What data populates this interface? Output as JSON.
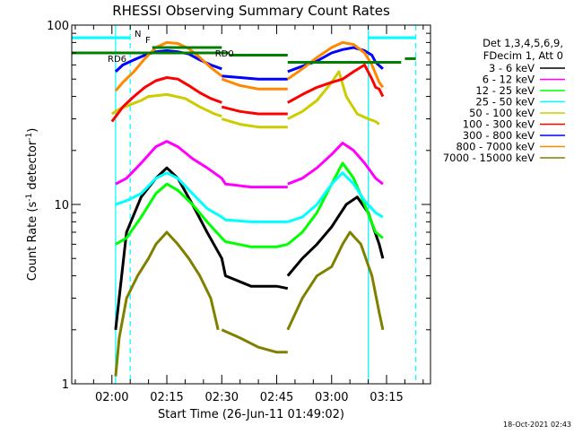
{
  "chart_data": {
    "type": "line",
    "title": "RHESSI Observing Summary Count Rates",
    "xlabel": "Start Time (26-Jun-11 01:49:02)",
    "ylabel_main": "Count Rate (s",
    "ylabel_sup": "-1",
    "ylabel_tail": " detector",
    "ylabel_end": ")",
    "yscale": "log",
    "ylim": [
      1,
      100
    ],
    "xlim": [
      "01:49:02",
      "03:27:00"
    ],
    "y_ticks": [
      "1",
      "10",
      "100"
    ],
    "x_ticks": [
      "02:00",
      "02:15",
      "02:30",
      "02:45",
      "03:00",
      "03:15"
    ],
    "legend_header": [
      "Det 1,3,4,5,6,9,",
      "FDecim 1, Att 0"
    ],
    "legend_placement": "right",
    "series": [
      {
        "name": "3 - 6 keV",
        "color": "#000000",
        "segments": [
          [
            [
              "02:01",
              2
            ],
            [
              "02:04",
              7
            ],
            [
              "02:08",
              11
            ],
            [
              "02:12",
              14
            ],
            [
              "02:15",
              16
            ],
            [
              "02:18",
              14
            ],
            [
              "02:22",
              10
            ],
            [
              "02:26",
              7
            ],
            [
              "02:30",
              5
            ],
            [
              "02:31",
              4
            ],
            [
              "02:38",
              3.5
            ],
            [
              "02:45",
              3.5
            ],
            [
              "02:48",
              3.4
            ]
          ],
          [
            [
              "02:48",
              4
            ],
            [
              "02:52",
              5
            ],
            [
              "02:56",
              6
            ],
            [
              "03:00",
              7.5
            ],
            [
              "03:04",
              10
            ],
            [
              "03:07",
              11
            ],
            [
              "03:10",
              9
            ],
            [
              "03:13",
              6
            ],
            [
              "03:14",
              5
            ]
          ]
        ]
      },
      {
        "name": "6 - 12 keV",
        "color": "#ff00ff",
        "segments": [
          [
            [
              "02:01",
              13
            ],
            [
              "02:04",
              14
            ],
            [
              "02:08",
              17
            ],
            [
              "02:12",
              21
            ],
            [
              "02:15",
              22.5
            ],
            [
              "02:18",
              21
            ],
            [
              "02:22",
              18
            ],
            [
              "02:26",
              16
            ],
            [
              "02:30",
              14
            ],
            [
              "02:31",
              13
            ],
            [
              "02:38",
              12.5
            ],
            [
              "02:45",
              12.5
            ],
            [
              "02:48",
              12.5
            ]
          ],
          [
            [
              "02:48",
              13
            ],
            [
              "02:52",
              14
            ],
            [
              "02:56",
              16
            ],
            [
              "03:00",
              19
            ],
            [
              "03:03",
              22
            ],
            [
              "03:06",
              20
            ],
            [
              "03:09",
              17
            ],
            [
              "03:12",
              14
            ],
            [
              "03:14",
              13
            ]
          ]
        ]
      },
      {
        "name": "12 - 25 keV",
        "color": "#00ff00",
        "segments": [
          [
            [
              "02:01",
              6
            ],
            [
              "02:04",
              6.5
            ],
            [
              "02:08",
              8.5
            ],
            [
              "02:12",
              11.5
            ],
            [
              "02:15",
              13
            ],
            [
              "02:18",
              12
            ],
            [
              "02:22",
              10
            ],
            [
              "02:26",
              8
            ],
            [
              "02:30",
              6.5
            ],
            [
              "02:31",
              6.2
            ],
            [
              "02:38",
              5.8
            ],
            [
              "02:45",
              5.8
            ],
            [
              "02:48",
              6
            ]
          ],
          [
            [
              "02:48",
              6
            ],
            [
              "02:52",
              7
            ],
            [
              "02:56",
              9
            ],
            [
              "03:00",
              13
            ],
            [
              "03:03",
              17
            ],
            [
              "03:06",
              14
            ],
            [
              "03:09",
              10
            ],
            [
              "03:12",
              7
            ],
            [
              "03:14",
              6.5
            ]
          ]
        ]
      },
      {
        "name": "25 - 50 keV",
        "color": "#00ffff",
        "segments": [
          [
            [
              "02:01",
              10
            ],
            [
              "02:04",
              10.5
            ],
            [
              "02:08",
              11.5
            ],
            [
              "02:12",
              14
            ],
            [
              "02:15",
              15
            ],
            [
              "02:18",
              14
            ],
            [
              "02:22",
              11.5
            ],
            [
              "02:26",
              9.5
            ],
            [
              "02:30",
              8.5
            ],
            [
              "02:31",
              8.2
            ],
            [
              "02:38",
              8
            ],
            [
              "02:45",
              8
            ],
            [
              "02:48",
              8
            ]
          ],
          [
            [
              "02:48",
              8
            ],
            [
              "02:52",
              8.5
            ],
            [
              "02:56",
              10
            ],
            [
              "03:00",
              13
            ],
            [
              "03:03",
              15
            ],
            [
              "03:06",
              13
            ],
            [
              "03:09",
              10.5
            ],
            [
              "03:12",
              9
            ],
            [
              "03:14",
              8.5
            ]
          ]
        ]
      },
      {
        "name": "50 - 100 keV",
        "color": "#cccc00",
        "segments": [
          [
            [
              "02:00",
              32
            ],
            [
              "02:02",
              34
            ],
            [
              "02:05",
              36
            ],
            [
              "02:08",
              38
            ],
            [
              "02:10",
              40
            ],
            [
              "02:15",
              41
            ],
            [
              "02:20",
              39
            ],
            [
              "02:24",
              35
            ],
            [
              "02:28",
              32
            ],
            [
              "02:30",
              31
            ]
          ],
          [
            [
              "02:30",
              30
            ],
            [
              "02:35",
              28
            ],
            [
              "02:40",
              27
            ],
            [
              "02:45",
              27
            ],
            [
              "02:48",
              27
            ]
          ],
          [
            [
              "02:48",
              30
            ],
            [
              "02:52",
              33
            ],
            [
              "02:56",
              38
            ],
            [
              "03:00",
              48
            ],
            [
              "03:02",
              55
            ],
            [
              "03:04",
              40
            ],
            [
              "03:07",
              32
            ],
            [
              "03:10",
              30
            ],
            [
              "03:12",
              29
            ],
            [
              "03:13",
              28
            ]
          ]
        ]
      },
      {
        "name": "100 - 300 keV",
        "color": "#ff0000",
        "segments": [
          [
            [
              "02:00",
              29
            ],
            [
              "02:03",
              35
            ],
            [
              "02:06",
              40
            ],
            [
              "02:09",
              45
            ],
            [
              "02:12",
              49
            ],
            [
              "02:15",
              51
            ],
            [
              "02:18",
              50
            ],
            [
              "02:21",
              46
            ],
            [
              "02:24",
              42
            ],
            [
              "02:27",
              39
            ],
            [
              "02:30",
              37
            ]
          ],
          [
            [
              "02:30",
              35
            ],
            [
              "02:35",
              33
            ],
            [
              "02:40",
              32
            ],
            [
              "02:45",
              32
            ],
            [
              "02:48",
              32
            ]
          ],
          [
            [
              "02:48",
              37
            ],
            [
              "02:52",
              41
            ],
            [
              "02:56",
              45
            ],
            [
              "03:00",
              48
            ],
            [
              "03:03",
              50
            ],
            [
              "03:06",
              55
            ],
            [
              "03:09",
              60
            ],
            [
              "03:11",
              50
            ],
            [
              "03:12",
              45
            ],
            [
              "03:13",
              44
            ],
            [
              "03:14",
              40
            ]
          ]
        ]
      },
      {
        "name": "300 - 800 keV",
        "color": "#0000ff",
        "segments": [
          [
            [
              "02:01",
              55
            ],
            [
              "02:03",
              60
            ],
            [
              "02:06",
              64
            ],
            [
              "02:09",
              68
            ],
            [
              "02:12",
              71
            ],
            [
              "02:15",
              72
            ],
            [
              "02:18",
              71
            ],
            [
              "02:21",
              69
            ],
            [
              "02:24",
              64
            ],
            [
              "02:27",
              60
            ],
            [
              "02:30",
              57
            ]
          ],
          [
            [
              "02:30",
              52
            ],
            [
              "02:35",
              51
            ],
            [
              "02:40",
              50
            ],
            [
              "02:45",
              50
            ],
            [
              "02:48",
              50
            ]
          ],
          [
            [
              "02:48",
              55
            ],
            [
              "02:52",
              59
            ],
            [
              "02:56",
              63
            ],
            [
              "03:00",
              70
            ],
            [
              "03:03",
              73
            ],
            [
              "03:06",
              75
            ],
            [
              "03:09",
              72
            ],
            [
              "03:11",
              68
            ],
            [
              "03:12",
              62
            ],
            [
              "03:14",
              57
            ]
          ]
        ]
      },
      {
        "name": "800 - 7000 keV",
        "color": "#ff8800",
        "segments": [
          [
            [
              "02:01",
              43
            ],
            [
              "02:03",
              48
            ],
            [
              "02:06",
              55
            ],
            [
              "02:09",
              65
            ],
            [
              "02:12",
              75
            ],
            [
              "02:15",
              80
            ],
            [
              "02:18",
              79
            ],
            [
              "02:21",
              74
            ],
            [
              "02:24",
              66
            ],
            [
              "02:27",
              58
            ],
            [
              "02:30",
              52
            ]
          ],
          [
            [
              "02:30",
              50
            ],
            [
              "02:35",
              46
            ],
            [
              "02:40",
              44
            ],
            [
              "02:45",
              44
            ],
            [
              "02:48",
              44
            ]
          ],
          [
            [
              "02:48",
              50
            ],
            [
              "02:52",
              57
            ],
            [
              "02:56",
              66
            ],
            [
              "03:00",
              75
            ],
            [
              "03:03",
              80
            ],
            [
              "03:06",
              78
            ],
            [
              "03:09",
              70
            ],
            [
              "03:11",
              60
            ],
            [
              "03:13",
              48
            ],
            [
              "03:14",
              45
            ]
          ]
        ]
      },
      {
        "name": "7000 - 15000 keV",
        "color": "#808000",
        "segments": [
          [
            [
              "02:01",
              1.1
            ],
            [
              "02:02",
              1.8
            ],
            [
              "02:04",
              3
            ],
            [
              "02:07",
              4
            ],
            [
              "02:10",
              5
            ],
            [
              "02:12",
              6
            ],
            [
              "02:15",
              7
            ],
            [
              "02:18",
              6
            ],
            [
              "02:21",
              5
            ],
            [
              "02:24",
              4
            ],
            [
              "02:27",
              3
            ],
            [
              "02:29",
              2
            ]
          ],
          [
            [
              "02:30",
              2
            ],
            [
              "02:35",
              1.8
            ],
            [
              "02:40",
              1.6
            ],
            [
              "02:45",
              1.5
            ],
            [
              "02:48",
              1.5
            ]
          ],
          [
            [
              "02:48",
              2
            ],
            [
              "02:52",
              3
            ],
            [
              "02:56",
              4
            ],
            [
              "03:00",
              4.5
            ],
            [
              "03:03",
              6
            ],
            [
              "03:05",
              7
            ],
            [
              "03:08",
              6
            ],
            [
              "03:11",
              4
            ],
            [
              "03:13",
              2.5
            ],
            [
              "03:14",
              2
            ]
          ]
        ]
      }
    ],
    "attenuator_bars": [
      {
        "label": "RD6",
        "color": "#008000",
        "segments": [
          [
            [
              "01:49:02",
              70
            ],
            [
              "02:32",
              70
            ]
          ],
          [
            [
              "02:32",
              68
            ],
            [
              "02:48",
              68
            ]
          ],
          [
            [
              "02:48",
              62
            ],
            [
              "03:19",
              62
            ]
          ]
        ]
      },
      {
        "label": "RD0",
        "color": "#008000",
        "segments": [
          [
            [
              "02:11",
              75
            ],
            [
              "02:30",
              75
            ]
          ]
        ]
      }
    ],
    "marker_labels": [
      {
        "label": "N",
        "color": "#00ffff"
      },
      {
        "label": "F",
        "color": "#ff0000"
      }
    ],
    "night_bars": {
      "color": "#00ffff",
      "segments": [
        [
          [
            "01:49:02",
            85
          ],
          [
            "02:05",
            85
          ]
        ],
        [
          [
            "03:10",
            85
          ],
          [
            "03:23",
            85
          ]
        ]
      ]
    },
    "night_lines": {
      "color": "#00ffff",
      "solid": [
        "02:01",
        "03:10"
      ],
      "dashed": [
        "02:05",
        "03:23"
      ]
    },
    "saa_bars": {
      "color": "#008000",
      "segments": [
        [
          [
            "03:20",
            65
          ],
          [
            "03:23",
            65
          ]
        ]
      ]
    }
  },
  "timestamp": "18-Oct-2021 02:43"
}
